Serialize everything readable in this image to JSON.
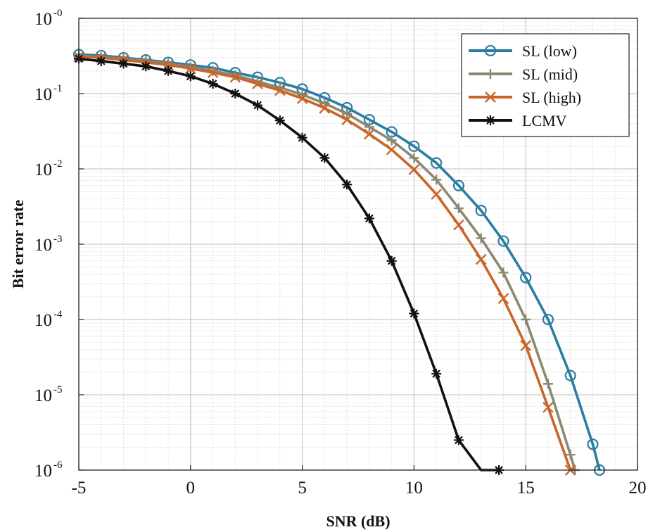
{
  "chart_data": {
    "type": "line",
    "title": "",
    "xlabel": "SNR (dB)",
    "ylabel": "Bit error rate",
    "xlim": [
      -5,
      20
    ],
    "ylim": [
      1e-06,
      1
    ],
    "yscale": "log",
    "grid": true,
    "minor_grid": true,
    "legend_position": "top-right",
    "x_ticks": [
      {
        "value": -5,
        "label": "-5"
      },
      {
        "value": 0,
        "label": "0"
      },
      {
        "value": 5,
        "label": "5"
      },
      {
        "value": 10,
        "label": "10"
      },
      {
        "value": 15,
        "label": "15"
      },
      {
        "value": 20,
        "label": "20"
      }
    ],
    "y_ticks": [
      {
        "value": 1,
        "base": "10",
        "exp": "-0"
      },
      {
        "value": 0.1,
        "base": "10",
        "exp": "-1"
      },
      {
        "value": 0.01,
        "base": "10",
        "exp": "-2"
      },
      {
        "value": 0.001,
        "base": "10",
        "exp": "-3"
      },
      {
        "value": 0.0001,
        "base": "10",
        "exp": "-4"
      },
      {
        "value": 1e-05,
        "base": "10",
        "exp": "-5"
      },
      {
        "value": 1e-06,
        "base": "10",
        "exp": "-6"
      }
    ],
    "series": [
      {
        "name": "SL (low)",
        "color": "#2b7ca3",
        "marker": "circle",
        "x": [
          -5,
          -4,
          -3,
          -2,
          -1,
          0,
          1,
          2,
          3,
          4,
          5,
          6,
          7,
          8,
          9,
          10,
          11,
          12,
          13,
          14,
          15,
          16,
          17,
          18,
          18.3
        ],
        "y": [
          0.33,
          0.32,
          0.3,
          0.28,
          0.26,
          0.24,
          0.22,
          0.19,
          0.165,
          0.14,
          0.115,
          0.088,
          0.065,
          0.045,
          0.031,
          0.02,
          0.012,
          0.006,
          0.0028,
          0.0011,
          0.00036,
          0.0001,
          1.8e-05,
          2.2e-06,
          1e-06
        ]
      },
      {
        "name": "SL (mid)",
        "color": "#8a8a72",
        "marker": "plus",
        "x": [
          -5,
          -4,
          -3,
          -2,
          -1,
          0,
          1,
          2,
          3,
          4,
          5,
          6,
          7,
          8,
          9,
          10,
          11,
          12,
          13,
          14,
          15,
          16,
          17,
          17.2
        ],
        "y": [
          0.32,
          0.305,
          0.29,
          0.27,
          0.25,
          0.225,
          0.2,
          0.175,
          0.145,
          0.12,
          0.097,
          0.074,
          0.054,
          0.036,
          0.024,
          0.014,
          0.0072,
          0.003,
          0.0012,
          0.00042,
          0.0001,
          1.4e-05,
          1.6e-06,
          1e-06
        ]
      },
      {
        "name": "SL (high)",
        "color": "#c8662a",
        "marker": "x",
        "x": [
          -5,
          -4,
          -3,
          -2,
          -1,
          0,
          1,
          2,
          3,
          4,
          5,
          6,
          7,
          8,
          9,
          10,
          11,
          12,
          13,
          14,
          15,
          16,
          17
        ],
        "y": [
          0.31,
          0.3,
          0.28,
          0.26,
          0.24,
          0.215,
          0.19,
          0.165,
          0.135,
          0.11,
          0.086,
          0.064,
          0.045,
          0.029,
          0.018,
          0.0098,
          0.0046,
          0.0018,
          0.00063,
          0.00019,
          4.5e-05,
          6.8e-06,
          1e-06
        ]
      },
      {
        "name": "LCMV",
        "color": "#111111",
        "marker": "star",
        "x": [
          -5,
          -4,
          -3,
          -2,
          -1,
          0,
          1,
          2,
          3,
          4,
          5,
          6,
          7,
          8,
          9,
          10,
          11,
          12,
          13,
          13.8
        ],
        "y": [
          0.29,
          0.27,
          0.25,
          0.23,
          0.2,
          0.17,
          0.135,
          0.1,
          0.07,
          0.044,
          0.026,
          0.014,
          0.0062,
          0.0022,
          0.0006,
          0.00012,
          1.9e-05,
          2.5e-06,
          1.2e-07,
          1e-06
        ]
      }
    ]
  }
}
